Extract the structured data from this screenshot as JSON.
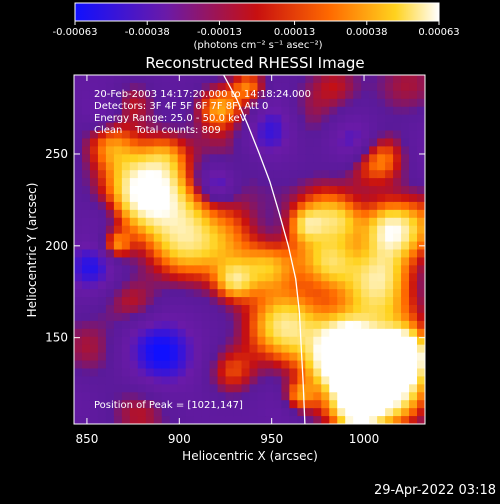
{
  "chart_data": {
    "type": "heatmap",
    "title": "Reconstructed RHESSI Image",
    "xlabel": "Heliocentric X (arcsec)",
    "ylabel": "Heliocentric Y (arcsec)",
    "xlim": [
      843,
      1033
    ],
    "ylim": [
      103,
      293
    ],
    "xticks": [
      850,
      900,
      950,
      1000
    ],
    "yticks": [
      150,
      200,
      250
    ],
    "colorbar": {
      "min": -0.00063,
      "max": 0.00063,
      "ticks": [
        "-0.00063",
        "-0.00038",
        "-0.00013",
        "0.00013",
        "0.00038",
        "0.00063"
      ],
      "tick_values": [
        -0.00063,
        -0.00038,
        -0.00013,
        0.00013,
        0.00038,
        0.00063
      ],
      "unit_label": "(photons cm⁻² s⁻¹ asec⁻²)",
      "colors": [
        "#1010ff",
        "#6a1aa8",
        "#c81010",
        "#ff6a00",
        "#ffd21e",
        "#ffffff"
      ]
    },
    "annotations": [
      "20-Feb-2003 14:17:20.000 to 14:18:24.000",
      "Detectors: 3F 4F 5F 6F 7F 8F, Att 0",
      "Energy Range: 25.0 - 50.0 keV",
      "Clean    Total counts: 809"
    ],
    "peak_text": "Position of Peak = [1021,147]",
    "peak": [
      1021,
      147
    ],
    "limb_line": [
      [
        924,
        293
      ],
      [
        931,
        280
      ],
      [
        937,
        266
      ],
      [
        943,
        251
      ],
      [
        949,
        235
      ],
      [
        954,
        218
      ],
      [
        959,
        200
      ],
      [
        963,
        182
      ],
      [
        965,
        164
      ],
      [
        966,
        145
      ],
      [
        967,
        126
      ],
      [
        968,
        103
      ]
    ],
    "timestamp": "29-Apr-2022 03:18"
  }
}
